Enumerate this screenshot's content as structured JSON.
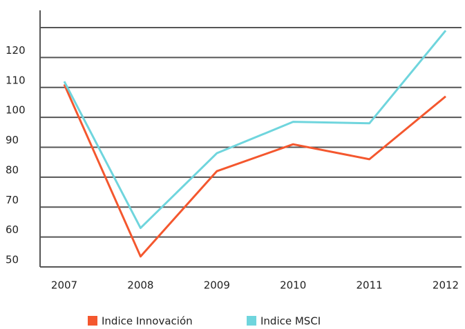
{
  "chart_data": {
    "type": "line",
    "categories": [
      "2007",
      "2008",
      "2009",
      "2010",
      "2011",
      "2012"
    ],
    "series": [
      {
        "name": "Indice Innovación",
        "color": "#f4572e",
        "values": [
          111,
          53.5,
          82,
          91,
          86,
          107
        ]
      },
      {
        "name": "Indice MSCI",
        "color": "#6fd5dd",
        "values": [
          112,
          63,
          88,
          98.5,
          98,
          129
        ]
      }
    ],
    "ylim": [
      50,
      130
    ],
    "yticks": [
      50,
      60,
      70,
      80,
      90,
      100,
      110,
      120
    ],
    "grid": true
  }
}
